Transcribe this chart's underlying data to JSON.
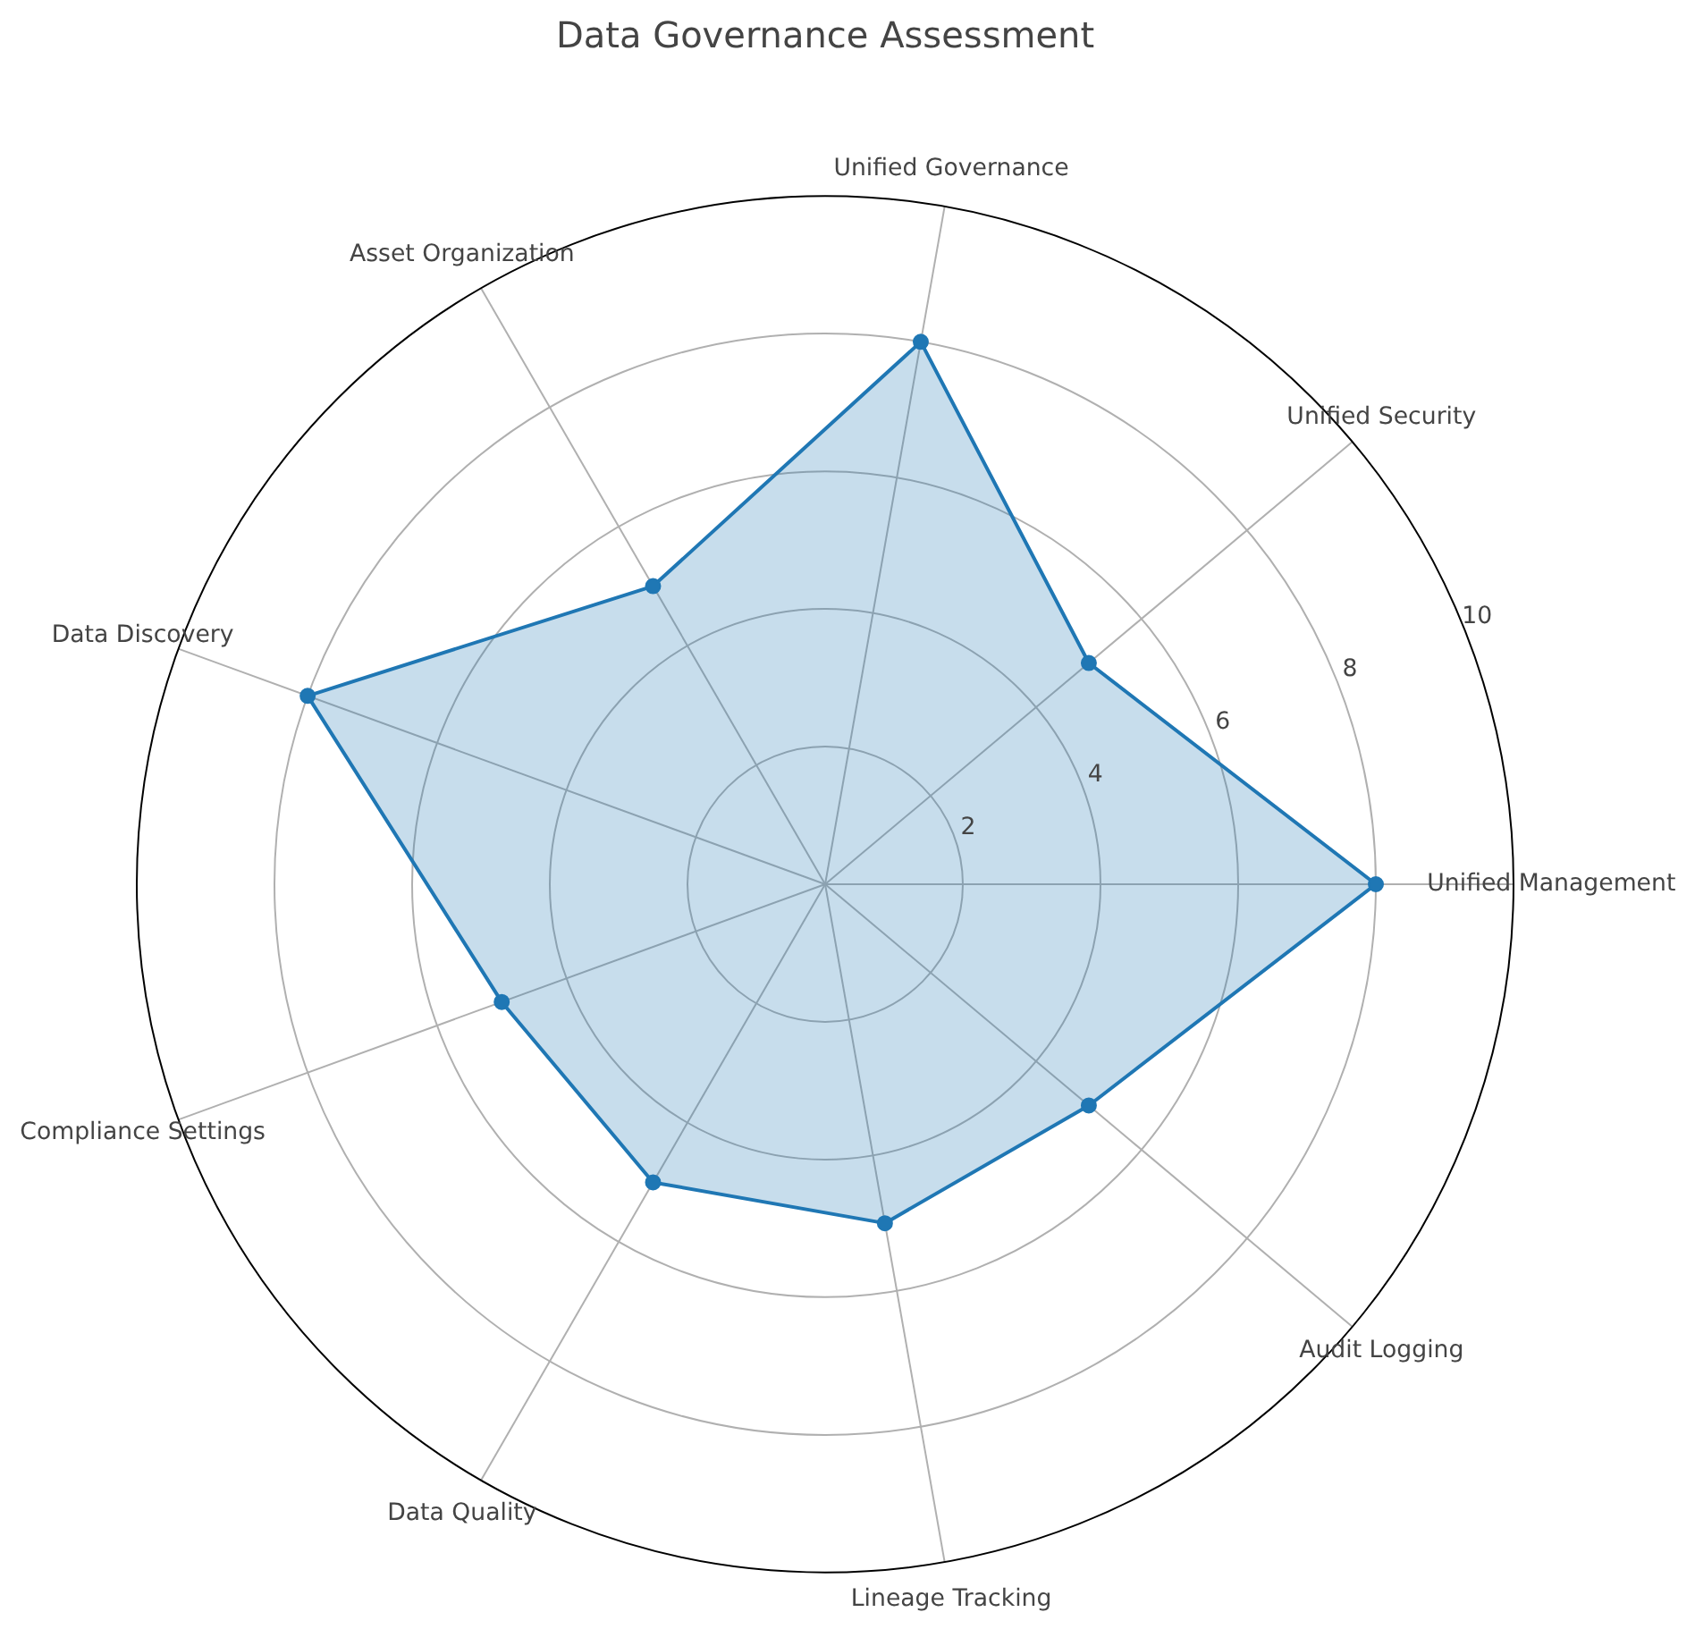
{
  "chart_data": {
    "type": "radar",
    "title": "Data Governance Assessment",
    "categories": [
      "Unified Governance",
      "Unified Security",
      "Unified Management",
      "Audit Logging",
      "Lineage Tracking",
      "Data Quality",
      "Compliance Settings",
      "Data Discovery",
      "Asset Organization"
    ],
    "series": [
      {
        "color": "#1f77b4",
        "values": [
          8,
          5,
          8,
          5,
          5,
          5,
          5,
          8,
          5
        ]
      }
    ],
    "ylim": [
      0,
      10
    ],
    "yticks": [
      2,
      4,
      6,
      8,
      10
    ],
    "grid": true,
    "marker": "circle",
    "line_style": "solid"
  }
}
